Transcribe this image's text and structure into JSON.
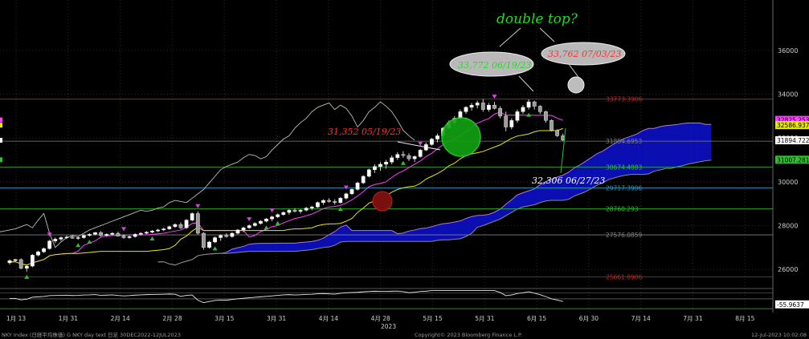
{
  "chart_data": {
    "type": "candlestick",
    "instrument": "NKY Index",
    "footer": {
      "left": "NKY Index (日経平均株価) G NKY day text  日足 30DEC2022-12JUL2023",
      "center": "Copyright© 2023 Bloomberg Finance L.P.",
      "right": "12-Jul-2023 10:02:08"
    },
    "year_label": "2023",
    "x_ticks": [
      "1月 13",
      "1月 31",
      "2月 14",
      "2月 28",
      "3月 15",
      "3月 31",
      "4月 14",
      "4月 28",
      "5月 15",
      "5月 31",
      "6月 15",
      "6月 30",
      "7月 14",
      "7月 31",
      "8月 15"
    ],
    "y_ticks": [
      26000,
      28000,
      30000,
      32000,
      34000,
      36000
    ],
    "ylim": [
      25200,
      38300
    ],
    "osc_ylim": [
      -140,
      90
    ],
    "osc_value_label": "-55.9637",
    "colors": {
      "up": "#ffffff",
      "down": "#9a9a9a",
      "tenkan": "#ff40ff",
      "kijun": "#e8e800",
      "chikou": "#bdbdbd",
      "cloud": "#0b0fb2",
      "level_red": "#d02020",
      "level_green": "#2fbf2f",
      "level_cyan": "#20a0c0",
      "annot_green": "#20dd20",
      "annot_red": "#ff3030"
    },
    "candles": [
      [
        0,
        26300,
        26460,
        26220,
        26400
      ],
      [
        1,
        26400,
        26480,
        26350,
        26450
      ],
      [
        2,
        26450,
        26500,
        26000,
        26050
      ],
      [
        3,
        26050,
        26200,
        25900,
        26150
      ],
      [
        4,
        26150,
        26700,
        26100,
        26650
      ],
      [
        5,
        26650,
        26850,
        26600,
        26800
      ],
      [
        6,
        26800,
        27000,
        26750,
        26950
      ],
      [
        7,
        26950,
        27350,
        26900,
        27300
      ],
      [
        8,
        27300,
        27450,
        27200,
        27380
      ],
      [
        9,
        27380,
        27500,
        27300,
        27450
      ],
      [
        10,
        27450,
        27550,
        27380,
        27480
      ],
      [
        11,
        27480,
        27560,
        27400,
        27420
      ],
      [
        12,
        27420,
        27520,
        27350,
        27450
      ],
      [
        13,
        27450,
        27600,
        27400,
        27550
      ],
      [
        14,
        27550,
        27650,
        27500,
        27600
      ],
      [
        15,
        27600,
        27700,
        27550,
        27680
      ],
      [
        16,
        27680,
        27750,
        27500,
        27550
      ],
      [
        17,
        27550,
        27650,
        27500,
        27600
      ],
      [
        18,
        27600,
        27700,
        27550,
        27650
      ],
      [
        19,
        27650,
        27720,
        27500,
        27520
      ],
      [
        20,
        27520,
        27600,
        27400,
        27450
      ],
      [
        21,
        27450,
        27550,
        27400,
        27500
      ],
      [
        22,
        27500,
        27650,
        27450,
        27600
      ],
      [
        23,
        27600,
        27700,
        27550,
        27650
      ],
      [
        24,
        27650,
        27750,
        27600,
        27700
      ],
      [
        25,
        27700,
        27800,
        27650,
        27750
      ],
      [
        26,
        27750,
        27850,
        27700,
        27800
      ],
      [
        27,
        27800,
        27900,
        27750,
        27850
      ],
      [
        28,
        27850,
        28000,
        27800,
        27950
      ],
      [
        29,
        27950,
        28100,
        27900,
        28050
      ],
      [
        30,
        28050,
        28150,
        27850,
        27900
      ],
      [
        31,
        27900,
        28300,
        27850,
        28250
      ],
      [
        32,
        28250,
        28600,
        28200,
        28550
      ],
      [
        33,
        28550,
        28650,
        27600,
        27650
      ],
      [
        34,
        27650,
        27700,
        26900,
        27000
      ],
      [
        35,
        27000,
        27300,
        26950,
        27250
      ],
      [
        36,
        27250,
        27500,
        27200,
        27450
      ],
      [
        37,
        27450,
        27600,
        27300,
        27550
      ],
      [
        38,
        27550,
        27650,
        27450,
        27500
      ],
      [
        39,
        27500,
        27700,
        27450,
        27650
      ],
      [
        40,
        27650,
        27850,
        27600,
        27800
      ],
      [
        41,
        27800,
        27950,
        27700,
        27900
      ],
      [
        42,
        27900,
        28050,
        27850,
        28000
      ],
      [
        43,
        28000,
        28150,
        27950,
        28100
      ],
      [
        44,
        28100,
        28250,
        28050,
        28200
      ],
      [
        45,
        28200,
        28350,
        28150,
        28300
      ],
      [
        46,
        28300,
        28450,
        28200,
        28400
      ],
      [
        47,
        28400,
        28550,
        28350,
        28500
      ],
      [
        48,
        28500,
        28650,
        28450,
        28600
      ],
      [
        49,
        28600,
        28750,
        28500,
        28700
      ],
      [
        50,
        28700,
        28800,
        28600,
        28650
      ],
      [
        51,
        28650,
        28750,
        28550,
        28700
      ],
      [
        52,
        28700,
        28850,
        28650,
        28800
      ],
      [
        53,
        28800,
        28900,
        28700,
        28850
      ],
      [
        54,
        28850,
        29100,
        28800,
        29050
      ],
      [
        55,
        29050,
        29200,
        28950,
        29150
      ],
      [
        56,
        29150,
        29250,
        29050,
        29100
      ],
      [
        57,
        29100,
        29200,
        28950,
        29050
      ],
      [
        58,
        29050,
        29300,
        29000,
        29250
      ],
      [
        59,
        29250,
        29500,
        29200,
        29450
      ],
      [
        60,
        29450,
        29700,
        29400,
        29650
      ],
      [
        61,
        29650,
        30000,
        29600,
        29950
      ],
      [
        62,
        29950,
        30300,
        29900,
        30250
      ],
      [
        63,
        30250,
        30600,
        30200,
        30550
      ],
      [
        64,
        30550,
        30800,
        30400,
        30700
      ],
      [
        65,
        30700,
        30900,
        30500,
        30800
      ],
      [
        66,
        30800,
        31000,
        30600,
        30900
      ],
      [
        67,
        30900,
        31200,
        30800,
        31100
      ],
      [
        68,
        31100,
        31350,
        31000,
        31250
      ],
      [
        69,
        31250,
        31400,
        31100,
        31200
      ],
      [
        70,
        31200,
        31300,
        30950,
        31050
      ],
      [
        71,
        31050,
        31200,
        30900,
        31150
      ],
      [
        72,
        31150,
        31500,
        31100,
        31450
      ],
      [
        73,
        31450,
        31800,
        31400,
        31700
      ],
      [
        74,
        31700,
        32000,
        31650,
        31950
      ],
      [
        75,
        31950,
        32200,
        31800,
        32100
      ],
      [
        76,
        32100,
        32500,
        32000,
        32450
      ],
      [
        77,
        32450,
        32800,
        32400,
        32700
      ],
      [
        78,
        32700,
        33000,
        32600,
        32900
      ],
      [
        79,
        32900,
        33300,
        32850,
        33200
      ],
      [
        80,
        33200,
        33450,
        33100,
        33400
      ],
      [
        81,
        33400,
        33600,
        33250,
        33500
      ],
      [
        82,
        33500,
        33700,
        33350,
        33600
      ],
      [
        83,
        33600,
        33772,
        33200,
        33300
      ],
      [
        84,
        33300,
        33600,
        33200,
        33500
      ],
      [
        85,
        33500,
        33650,
        33300,
        33350
      ],
      [
        86,
        33350,
        33450,
        32900,
        33000
      ],
      [
        87,
        33000,
        33200,
        32306,
        32500
      ],
      [
        88,
        32500,
        32900,
        32400,
        32800
      ],
      [
        89,
        32800,
        33300,
        32700,
        33200
      ],
      [
        90,
        33200,
        33500,
        33100,
        33400
      ],
      [
        91,
        33400,
        33762,
        33300,
        33650
      ],
      [
        92,
        33650,
        33700,
        33300,
        33450
      ],
      [
        93,
        33450,
        33500,
        33100,
        33200
      ],
      [
        94,
        33200,
        33250,
        32700,
        32800
      ],
      [
        95,
        32800,
        32850,
        32300,
        32350
      ],
      [
        96,
        32350,
        32400,
        32050,
        32100
      ],
      [
        97,
        32100,
        32200,
        31850,
        31900
      ]
    ],
    "levels": [
      {
        "value": 33773.3906,
        "label": "33773.3906",
        "color": "#d02020"
      },
      {
        "value": 31854.6953,
        "label": "31854.6953",
        "color": "#808080"
      },
      {
        "value": 30674.4883,
        "label": "30674.4883",
        "color": "#2fbf2f"
      },
      {
        "value": 29717.3906,
        "label": "29717.3906",
        "color": "#20a0c0"
      },
      {
        "value": 28760.293,
        "label": "28760.293",
        "color": "#2fbf2f"
      },
      {
        "value": 27576.0859,
        "label": "27576.0859",
        "color": "#808080"
      },
      {
        "value": 25661.8906,
        "label": "25661.8906",
        "color": "#d02020"
      }
    ],
    "value_tags": [
      {
        "value": 32825.2539,
        "label": "32825.2539",
        "color": "#ff40ff",
        "text_color": "#000"
      },
      {
        "value": 32586.9375,
        "label": "32586.9375",
        "color": "#e8e800",
        "text_color": "#000"
      },
      {
        "value": 31894.7227,
        "label": "31894.7227",
        "color": "#ffffff",
        "text_color": "#000"
      },
      {
        "value": 31007.2812,
        "label": "31007.2812",
        "color": "#2fbf2f",
        "text_color": "#000"
      }
    ],
    "annotations": {
      "title_note": "double top?",
      "peak1": "33,772 06/19/23",
      "peak2": "33,762 07/03/23",
      "break_level": "31,352 05/19/23",
      "trough": "32,306 06/27/23"
    }
  }
}
